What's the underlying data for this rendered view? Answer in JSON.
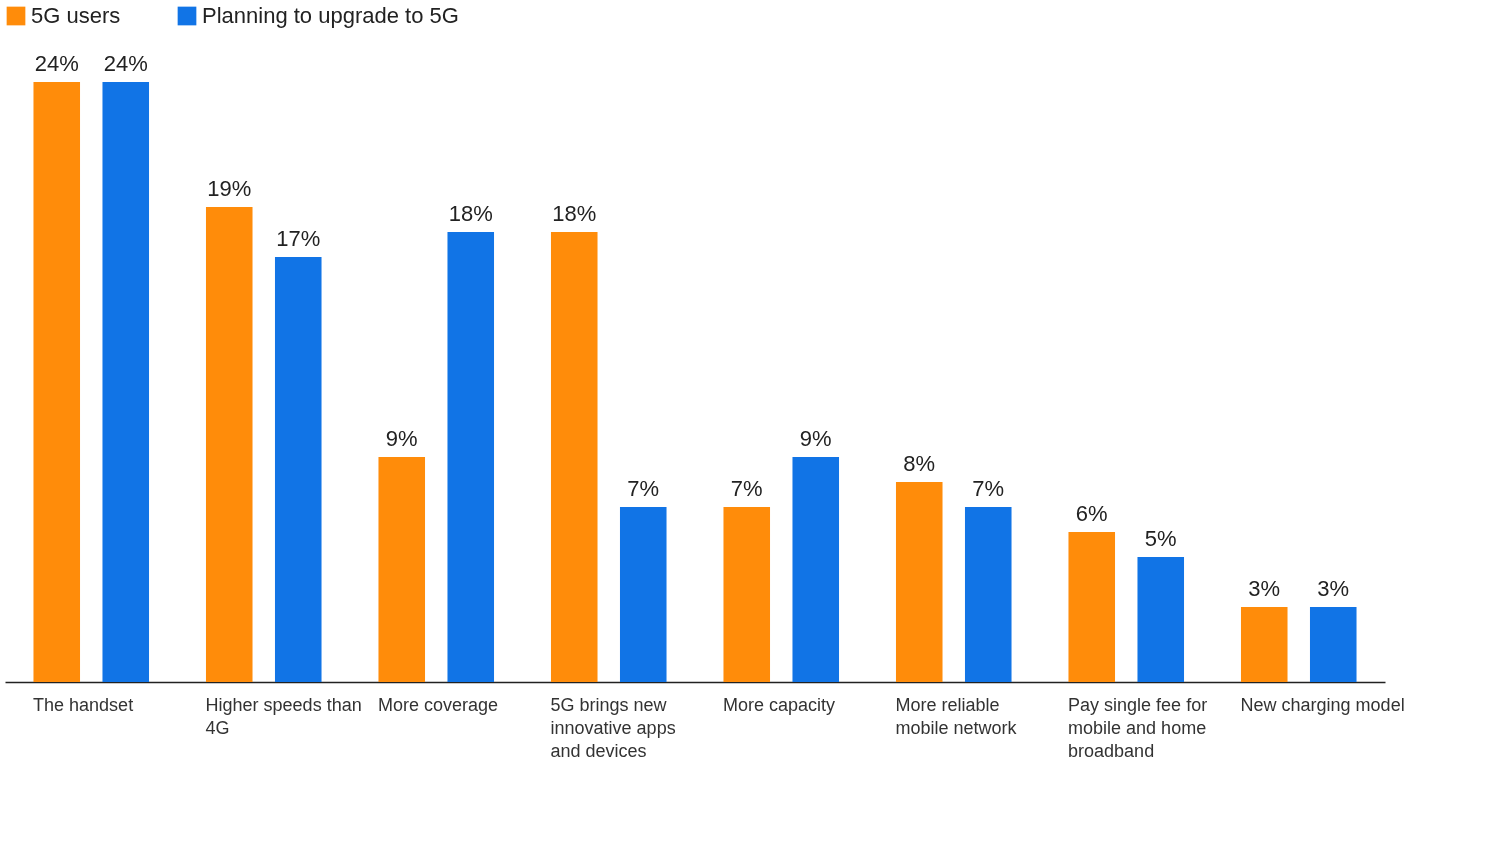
{
  "chart_data": {
    "type": "bar",
    "categories": [
      "The handset",
      "Higher speeds than 4G",
      "More coverage",
      "5G brings new innovative apps and devices",
      "More capacity",
      "More reliable mobile network",
      "Pay single fee for mobile and home broadband",
      "New charging model"
    ],
    "series": [
      {
        "name": "5G users",
        "color": "#ff8c0a",
        "values": [
          24,
          19,
          9,
          18,
          7,
          8,
          6,
          3
        ],
        "value_labels": [
          "24%",
          "19%",
          "9%",
          "18%",
          "7%",
          "8%",
          "6%",
          "3%"
        ]
      },
      {
        "name": "Planning to upgrade to 5G",
        "color": "#1174e6",
        "values": [
          24,
          17,
          18,
          7,
          9,
          7,
          5,
          3
        ],
        "value_labels": [
          "24%",
          "17%",
          "18%",
          "7%",
          "9%",
          "7%",
          "5%",
          "3%"
        ]
      }
    ],
    "legend": "top left",
    "grid": false
  }
}
